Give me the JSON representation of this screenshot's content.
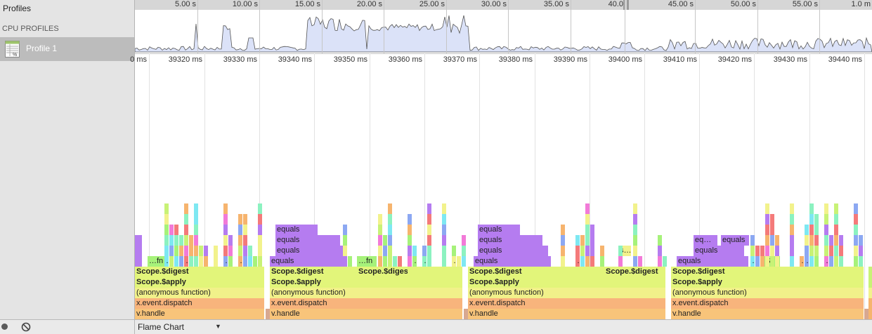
{
  "sidebar": {
    "title": "Profiles",
    "section": "CPU PROFILES",
    "profile_label": "Profile 1"
  },
  "bottom_bar": {
    "view_label": "Flame Chart"
  },
  "overview": {
    "tick_labels": [
      "5.00 s",
      "10.00 s",
      "15.00 s",
      "20.00 s",
      "25.00 s",
      "30.00 s",
      "35.00 s",
      "40.0",
      "45.00 s",
      "50.00 s",
      "55.00 s",
      "1.0 m"
    ]
  },
  "detail_ruler": {
    "tick_labels": [
      "0 ms",
      "39320 ms",
      "39330 ms",
      "39340 ms",
      "39350 ms",
      "39360 ms",
      "39370 ms",
      "39380 ms",
      "39390 ms",
      "39400 ms",
      "39410 ms",
      "39420 ms",
      "39430 ms",
      "39440 ms"
    ]
  },
  "flame": {
    "base_rows": [
      {
        "name": "v.handle",
        "color": "#f8c47a"
      },
      {
        "name": "x.event.dispatch",
        "color": "#f8b47c"
      },
      {
        "name": "(anonymous function)",
        "color": "#f1f18a"
      },
      {
        "name": "Scope.$apply",
        "color": "#e2f57a"
      },
      {
        "name": "Scope.$digest",
        "color": "#e2f57a"
      }
    ],
    "labels": {
      "fn": "…fn",
      "equals": "equals",
      "eq": "eq…",
      "dots": "…",
      "s_dots": "s…",
      "si": "$i…"
    },
    "colors": {
      "purple": "#b57cf0",
      "yellow": "#f2f28c",
      "green": "#a6f27a",
      "cyan": "#7ee8f2",
      "pink": "#f27ad8",
      "red": "#f47a7a",
      "blue": "#8ca8f2",
      "orange": "#f6b46e",
      "mint": "#8cf2c0",
      "lime": "#c8f276"
    }
  }
}
